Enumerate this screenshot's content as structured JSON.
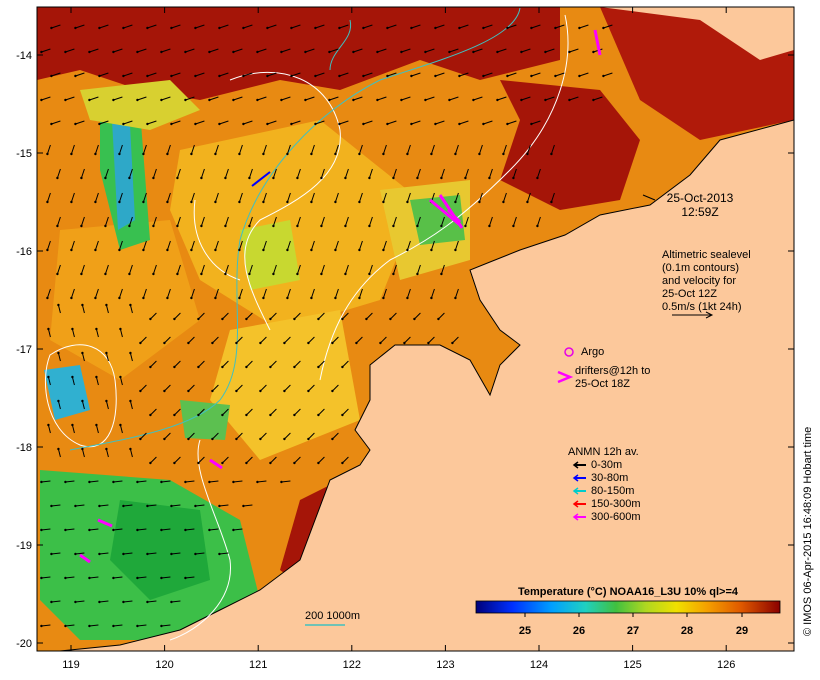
{
  "map": {
    "lon_ticks": [
      "119",
      "120",
      "121",
      "122",
      "123",
      "124",
      "125",
      "126"
    ],
    "lat_ticks": [
      "-14",
      "-15",
      "-16",
      "-17",
      "-18",
      "-19",
      "-20"
    ]
  },
  "timestamp": {
    "date": "25-Oct-2013",
    "time": "12:59Z"
  },
  "altimetry": {
    "line1": "Altimetric sealevel",
    "line2": "(0.1m contours)",
    "line3": "and velocity for",
    "line4": "25-Oct 12Z",
    "line5": "0.5m/s (1kt 24h)"
  },
  "argo": {
    "label": "Argo",
    "color": "#e600e6"
  },
  "drifters": {
    "line1": "drifters@12h to",
    "line2": "25-Oct 18Z",
    "color": "#ff00ff"
  },
  "anmn": {
    "title": "ANMN 12h av.",
    "entries": [
      {
        "label": "0-30m",
        "color": "#000000"
      },
      {
        "label": "30-80m",
        "color": "#0000ff"
      },
      {
        "label": "80-150m",
        "color": "#00cccc"
      },
      {
        "label": "150-300m",
        "color": "#ff0000"
      },
      {
        "label": "300-600m",
        "color": "#ff00ff"
      }
    ]
  },
  "colorbar": {
    "title": "Temperature (°C) NOAA16_L3U 10% ql>=4",
    "ticks": [
      "25",
      "26",
      "27",
      "28",
      "29"
    ]
  },
  "isobath": {
    "label": "200  1000m",
    "color": "#40c0c0"
  },
  "credit": "© IMOS 06-Apr-2015 16:48:09 Hobart time",
  "colors": {
    "land": "#fcc89b",
    "sst_cool": "#2fb84a",
    "sst_warm": "#f0a21a",
    "sst_hot": "#a01010"
  }
}
